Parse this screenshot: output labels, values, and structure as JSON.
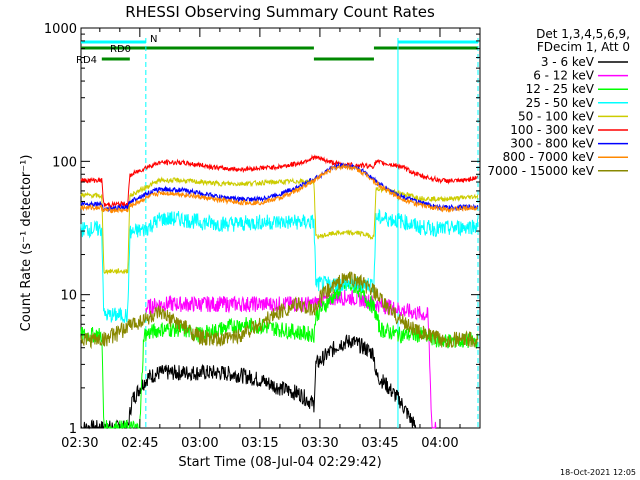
{
  "chart_data": {
    "type": "line",
    "title": "RHESSI Observing Summary Count Rates",
    "xlabel": "Start Time (08-Jul-04 02:29:42)",
    "ylabel": "Count Rate (s⁻¹ detector⁻¹)",
    "yscale": "log",
    "ylim": [
      1,
      1000
    ],
    "xlim_minutes": [
      0.3,
      100
    ],
    "x_tick_labels": [
      "02:30",
      "02:45",
      "03:00",
      "03:15",
      "03:30",
      "03:45",
      "04:00"
    ],
    "x_tick_minutes": [
      0,
      15,
      30,
      45,
      60,
      75,
      90
    ],
    "y_tick_labels": [
      "1",
      "10",
      "100",
      "1000"
    ],
    "y_tick_values": [
      1,
      10,
      100,
      1000
    ],
    "grid": false,
    "legend_position": "right",
    "legend_header": [
      "Det 1,3,4,5,6,9,",
      "FDecim 1, Att 0"
    ],
    "timestamp": "18-Oct-2021 12:05",
    "flag_bars": [
      {
        "label": "N",
        "color": "#00ffff",
        "segments": [
          [
            0.3,
            16.5
          ],
          [
            79.5,
            99.5
          ]
        ]
      },
      {
        "label": "RD0",
        "color": "#008800",
        "segments": [
          [
            0.3,
            58.5
          ],
          [
            73.5,
            99.5
          ]
        ]
      },
      {
        "label": "RD4",
        "color": "#008800",
        "segments": [
          [
            5.5,
            12.5
          ],
          [
            58.5,
            73.5
          ]
        ]
      }
    ],
    "vertical_markers": [
      {
        "color": "#00ffff",
        "style": "dashed",
        "x_minutes": [
          16.5,
          99.5
        ]
      },
      {
        "color": "#00ffff",
        "style": "solid",
        "x_minutes": [
          79.5
        ]
      }
    ],
    "series": [
      {
        "name": "3 - 6 keV",
        "color": "#000000",
        "points": [
          [
            0.3,
            1
          ],
          [
            12,
            1
          ],
          [
            13,
            1.6
          ],
          [
            15,
            2
          ],
          [
            17,
            2.4
          ],
          [
            20,
            2.6
          ],
          [
            25,
            2.6
          ],
          [
            30,
            2.6
          ],
          [
            35,
            2.6
          ],
          [
            40,
            2.5
          ],
          [
            45,
            2.3
          ],
          [
            50,
            2
          ],
          [
            55,
            1.8
          ],
          [
            58.5,
            1.5
          ],
          [
            59,
            3
          ],
          [
            62,
            3.6
          ],
          [
            65,
            4.3
          ],
          [
            68,
            4.5
          ],
          [
            71,
            4
          ],
          [
            73.5,
            3.6
          ],
          [
            74,
            2.5
          ],
          [
            76,
            2.2
          ],
          [
            80,
            1.6
          ],
          [
            84,
            1
          ]
        ]
      },
      {
        "name": "6 - 12 keV",
        "color": "#ff00ff",
        "points": [
          [
            16.5,
            8
          ],
          [
            20,
            8.5
          ],
          [
            25,
            8.5
          ],
          [
            30,
            8.5
          ],
          [
            35,
            8.5
          ],
          [
            40,
            8.5
          ],
          [
            45,
            8.5
          ],
          [
            50,
            8.5
          ],
          [
            58.5,
            8.5
          ],
          [
            60,
            9
          ],
          [
            64,
            9.5
          ],
          [
            68,
            9.5
          ],
          [
            72,
            9
          ],
          [
            74,
            8.5
          ],
          [
            78,
            8
          ],
          [
            82,
            7.5
          ],
          [
            87,
            7
          ],
          [
            88,
            1
          ],
          [
            89,
            1
          ]
        ]
      },
      {
        "name": "12 - 25 keV",
        "color": "#00ff00",
        "points": [
          [
            0.3,
            5
          ],
          [
            5.5,
            5
          ],
          [
            6,
            1
          ],
          [
            15,
            1
          ],
          [
            16,
            5
          ],
          [
            20,
            5.5
          ],
          [
            25,
            5.5
          ],
          [
            30,
            5
          ],
          [
            35,
            5.5
          ],
          [
            40,
            6
          ],
          [
            45,
            5.8
          ],
          [
            50,
            5.5
          ],
          [
            58.5,
            5
          ],
          [
            59,
            7
          ],
          [
            63,
            9.5
          ],
          [
            66,
            11.5
          ],
          [
            69,
            11.5
          ],
          [
            72,
            9
          ],
          [
            73.5,
            8
          ],
          [
            75,
            5.5
          ],
          [
            80,
            5
          ],
          [
            85,
            5
          ],
          [
            90,
            4.5
          ],
          [
            99.5,
            4.5
          ]
        ]
      },
      {
        "name": "25 - 50 keV",
        "color": "#00ffff",
        "points": [
          [
            0.3,
            31
          ],
          [
            5.5,
            31
          ],
          [
            6,
            7
          ],
          [
            12,
            7
          ],
          [
            12.5,
            29
          ],
          [
            16.5,
            31
          ],
          [
            20,
            37
          ],
          [
            25,
            37
          ],
          [
            30,
            35
          ],
          [
            35,
            34
          ],
          [
            40,
            34
          ],
          [
            45,
            35
          ],
          [
            50,
            35
          ],
          [
            58.5,
            35
          ],
          [
            59,
            12
          ],
          [
            64,
            12
          ],
          [
            70,
            12
          ],
          [
            73.5,
            12
          ],
          [
            74,
            38
          ],
          [
            80,
            36
          ],
          [
            85,
            32
          ],
          [
            90,
            31
          ],
          [
            95,
            32
          ],
          [
            99.5,
            33
          ]
        ]
      },
      {
        "name": "50 - 100 keV",
        "color": "#cccc00",
        "points": [
          [
            0.3,
            56
          ],
          [
            5.5,
            55
          ],
          [
            6,
            15
          ],
          [
            12,
            15
          ],
          [
            12.5,
            55
          ],
          [
            16.5,
            64
          ],
          [
            20,
            72
          ],
          [
            25,
            72
          ],
          [
            30,
            70
          ],
          [
            35,
            68
          ],
          [
            40,
            68
          ],
          [
            45,
            69
          ],
          [
            50,
            70
          ],
          [
            55,
            71
          ],
          [
            58.5,
            70
          ],
          [
            59,
            27
          ],
          [
            64,
            29
          ],
          [
            70,
            29
          ],
          [
            73.5,
            27
          ],
          [
            74,
            62
          ],
          [
            80,
            58
          ],
          [
            85,
            53
          ],
          [
            90,
            52
          ],
          [
            95,
            53
          ],
          [
            99.5,
            55
          ]
        ]
      },
      {
        "name": "100 - 300 keV",
        "color": "#ff0000",
        "points": [
          [
            0.3,
            72
          ],
          [
            5.5,
            72
          ],
          [
            6,
            47
          ],
          [
            12,
            48
          ],
          [
            12.5,
            78
          ],
          [
            16.5,
            90
          ],
          [
            20,
            98
          ],
          [
            25,
            98
          ],
          [
            30,
            94
          ],
          [
            35,
            89
          ],
          [
            40,
            87
          ],
          [
            45,
            89
          ],
          [
            50,
            91
          ],
          [
            55,
            97
          ],
          [
            58.5,
            107
          ],
          [
            60,
            105
          ],
          [
            62,
            100
          ],
          [
            65,
            95
          ],
          [
            70,
            93
          ],
          [
            73.5,
            92
          ],
          [
            74,
            99
          ],
          [
            80,
            92
          ],
          [
            85,
            78
          ],
          [
            90,
            72
          ],
          [
            95,
            71
          ],
          [
            99.5,
            76
          ]
        ]
      },
      {
        "name": "300 - 800 keV",
        "color": "#0000ff",
        "points": [
          [
            0.3,
            48
          ],
          [
            5.5,
            48
          ],
          [
            6,
            44
          ],
          [
            12,
            45
          ],
          [
            12.5,
            50
          ],
          [
            16.5,
            57
          ],
          [
            20,
            62
          ],
          [
            25,
            61
          ],
          [
            30,
            58
          ],
          [
            35,
            54
          ],
          [
            40,
            52
          ],
          [
            45,
            52
          ],
          [
            50,
            57
          ],
          [
            55,
            65
          ],
          [
            60,
            78
          ],
          [
            63,
            90
          ],
          [
            66,
            94
          ],
          [
            69,
            90
          ],
          [
            72,
            80
          ],
          [
            75,
            67
          ],
          [
            80,
            55
          ],
          [
            85,
            49
          ],
          [
            90,
            45
          ],
          [
            95,
            45
          ],
          [
            99.5,
            46
          ]
        ]
      },
      {
        "name": "800 - 7000 keV",
        "color": "#ff8800",
        "points": [
          [
            0.3,
            45
          ],
          [
            5.5,
            45
          ],
          [
            6,
            43
          ],
          [
            12,
            43
          ],
          [
            12.5,
            46
          ],
          [
            16.5,
            53
          ],
          [
            20,
            58
          ],
          [
            25,
            57
          ],
          [
            30,
            54
          ],
          [
            35,
            51
          ],
          [
            40,
            49
          ],
          [
            45,
            49
          ],
          [
            50,
            53
          ],
          [
            55,
            62
          ],
          [
            60,
            77
          ],
          [
            63,
            88
          ],
          [
            66,
            92
          ],
          [
            69,
            88
          ],
          [
            72,
            78
          ],
          [
            75,
            65
          ],
          [
            80,
            53
          ],
          [
            85,
            47
          ],
          [
            90,
            44
          ],
          [
            95,
            44
          ],
          [
            99.5,
            45
          ]
        ]
      },
      {
        "name": "7000 - 15000 keV",
        "color": "#888800",
        "points": [
          [
            0.3,
            4.6
          ],
          [
            5.5,
            4.6
          ],
          [
            6,
            4.6
          ],
          [
            10,
            5.2
          ],
          [
            12,
            5.8
          ],
          [
            16,
            6.5
          ],
          [
            20,
            7.2
          ],
          [
            25,
            6
          ],
          [
            30,
            4.8
          ],
          [
            35,
            4.5
          ],
          [
            40,
            5
          ],
          [
            45,
            6
          ],
          [
            50,
            7.5
          ],
          [
            55,
            8.5
          ],
          [
            58.5,
            7.5
          ],
          [
            60,
            9.5
          ],
          [
            64,
            12
          ],
          [
            67,
            13.5
          ],
          [
            70,
            12.5
          ],
          [
            73.5,
            10.5
          ],
          [
            76,
            8.5
          ],
          [
            80,
            6.5
          ],
          [
            85,
            5.2
          ],
          [
            90,
            4.6
          ],
          [
            99.5,
            4.6
          ]
        ]
      }
    ]
  }
}
